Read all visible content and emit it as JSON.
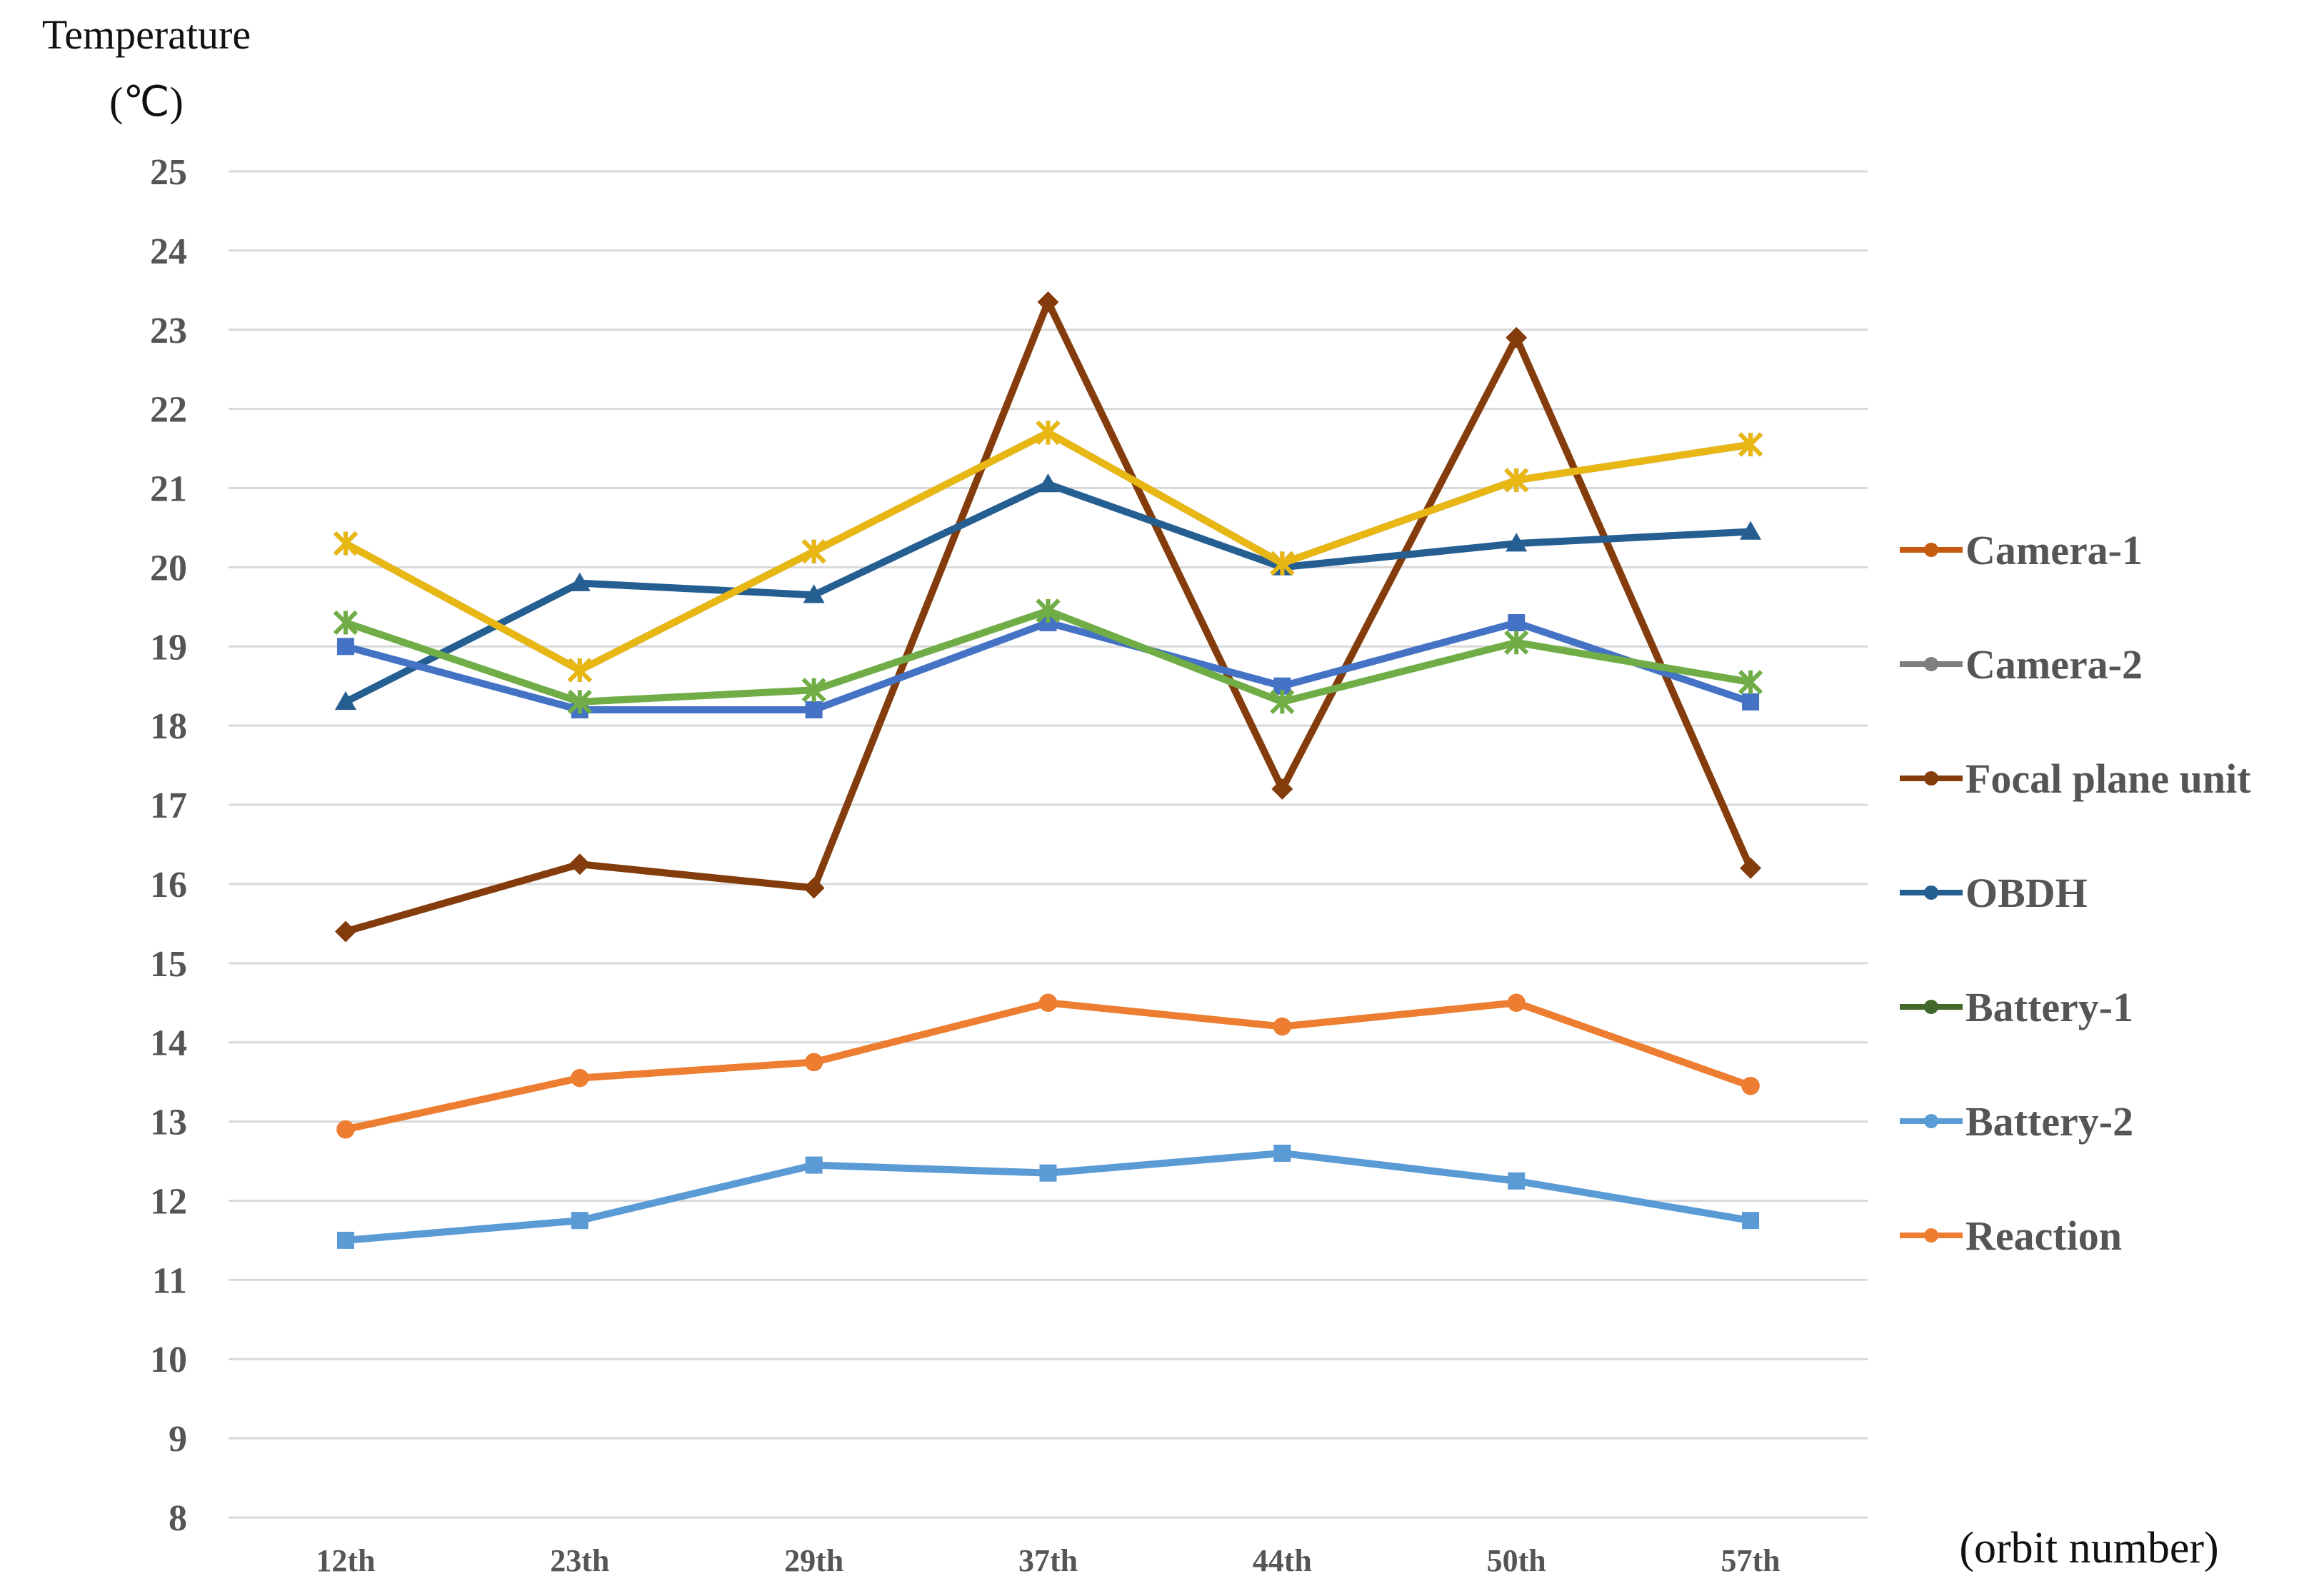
{
  "chart_data": {
    "type": "line",
    "ylabel_line1": "Temperature",
    "ylabel_line2": "(℃)",
    "xlabel": "(orbit number)",
    "categories": [
      "12th",
      "23th",
      "29th",
      "37th",
      "44th",
      "50th",
      "57th"
    ],
    "ylim": [
      8,
      25
    ],
    "yticks": [
      8,
      9,
      10,
      11,
      12,
      13,
      14,
      15,
      16,
      17,
      18,
      19,
      20,
      21,
      22,
      23,
      24,
      25
    ],
    "grid": true,
    "legend_position": "right",
    "series": [
      {
        "name": "Camera-1",
        "legend_color": "#c55a11",
        "color": "#e8b714",
        "marker": "x",
        "values": [
          20.3,
          18.7,
          20.2,
          21.7,
          20.05,
          21.1,
          21.55
        ]
      },
      {
        "name": "Camera-2",
        "legend_color": "#7f7f7f",
        "color": "#7f7f7f",
        "marker": "x",
        "values": [
          20.3,
          18.7,
          20.2,
          21.7,
          20.05,
          21.1,
          21.55
        ]
      },
      {
        "name": "Focal plane unit",
        "legend_color": "#843c0c",
        "color": "#843c0c",
        "marker": "diamond",
        "values": [
          15.4,
          16.25,
          15.95,
          23.35,
          17.2,
          22.9,
          16.2
        ]
      },
      {
        "name": "OBDH",
        "legend_color": "#255e91",
        "color": "#255e91",
        "marker": "triangle",
        "values": [
          18.3,
          19.8,
          19.65,
          21.05,
          20.0,
          20.3,
          20.45
        ]
      },
      {
        "name": "Battery-1",
        "legend_color": "#43682b",
        "color": "#70ad47",
        "marker": "x",
        "values": [
          19.3,
          18.3,
          18.45,
          19.45,
          18.3,
          19.05,
          18.55
        ]
      },
      {
        "name": "Battery-2",
        "legend_color": "#5b9bd5",
        "color": "#4472c4",
        "marker": "square",
        "values": [
          19.0,
          18.2,
          18.2,
          19.3,
          18.5,
          19.3,
          18.3
        ]
      },
      {
        "name": "Reaction",
        "legend_color": "#ed7d31",
        "color": "#ed7d31",
        "marker": "circle",
        "values": [
          12.9,
          13.55,
          13.75,
          14.5,
          14.2,
          14.5,
          13.45
        ]
      },
      {
        "name": "",
        "legend_color": "",
        "color": "#5b9bd5",
        "marker": "square",
        "values": [
          11.5,
          11.75,
          12.45,
          12.35,
          12.6,
          12.25,
          11.75
        ]
      }
    ]
  }
}
